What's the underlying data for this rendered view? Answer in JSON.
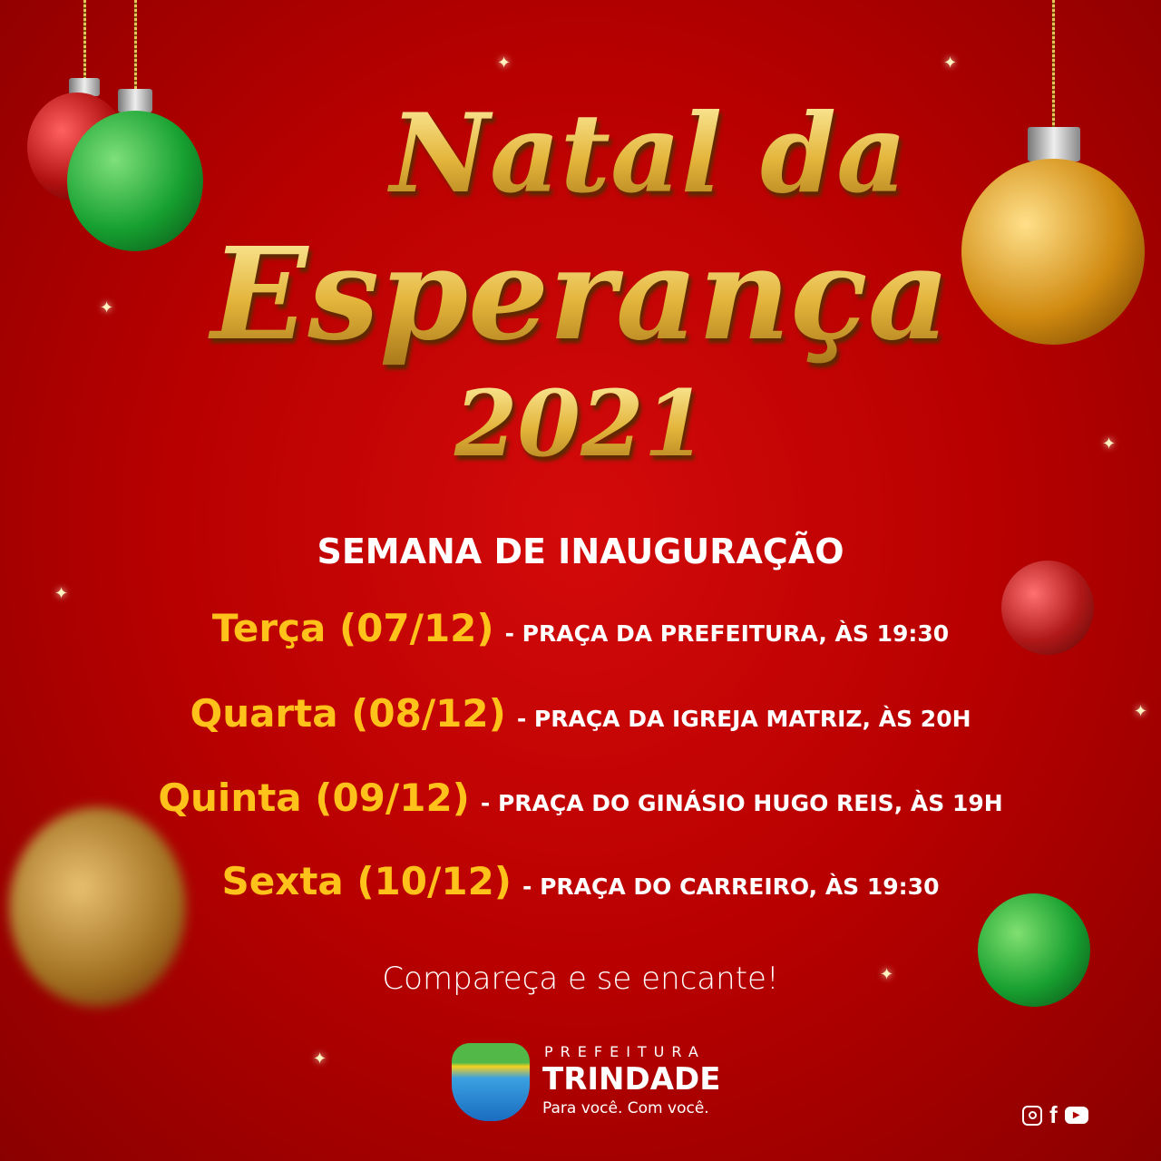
{
  "title": {
    "line1": "Natal da",
    "line2": "Esperança",
    "year": "2021"
  },
  "subtitle": "SEMANA DE INAUGURAÇÃO",
  "schedule": [
    {
      "day": "Terça (07/12)",
      "place": "- PRAÇA DA PREFEITURA, ÀS 19:30"
    },
    {
      "day": "Quarta (08/12)",
      "place": "- PRAÇA DA IGREJA MATRIZ, ÀS 20H"
    },
    {
      "day": "Quinta (09/12)",
      "place": "- PRAÇA DO GINÁSIO HUGO REIS, ÀS 19H"
    },
    {
      "day": "Sexta (10/12)",
      "place": "- PRAÇA DO CARREIRO, ÀS 19:30"
    }
  ],
  "cta": "Compareça e se encante!",
  "logo": {
    "top": "PREFEITURA",
    "name": "TRINDADE",
    "slogan": "Para você. Com você."
  },
  "social": [
    "instagram-icon",
    "facebook-icon",
    "youtube-icon"
  ],
  "colors": {
    "background": "#c00000",
    "gold": "#ffc21a",
    "text": "#ffffff"
  }
}
